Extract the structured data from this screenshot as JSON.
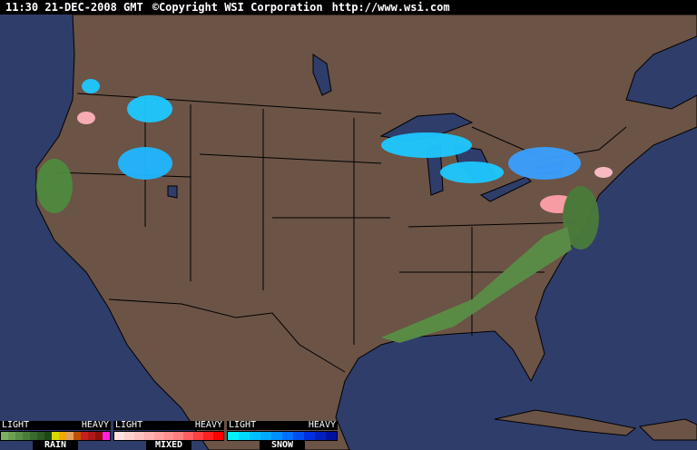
{
  "header": {
    "time": "11:30 21-DEC-2008 GMT",
    "copyright": "©Copyright WSI Corporation",
    "url": "http://www.wsi.com"
  },
  "colors": {
    "ocean": "#2f3d6a",
    "land": "#6b5346",
    "border": "#000000"
  },
  "legend": [
    {
      "name": "RAIN",
      "light": "LIGHT",
      "heavy": "HEAVY",
      "colors": [
        "#7cb060",
        "#6aa052",
        "#5a8e46",
        "#4a7c3a",
        "#3a6a2e",
        "#2e5a24",
        "#1e4818",
        "#d8d800",
        "#f0a800",
        "#e0a060",
        "#c05000",
        "#c82020",
        "#b01818",
        "#901010",
        "#ff20e0"
      ]
    },
    {
      "name": "MIXED",
      "light": "LIGHT",
      "heavy": "HEAVY",
      "colors": [
        "#ffe0e0",
        "#ffd0d0",
        "#ffc0c0",
        "#ffb0b0",
        "#ffa0a0",
        "#ff9090",
        "#ff8080",
        "#ff6060",
        "#ff4040",
        "#ff2020",
        "#ff0000"
      ]
    },
    {
      "name": "SNOW",
      "light": "LIGHT",
      "heavy": "HEAVY",
      "colors": [
        "#00f0ff",
        "#00d8ff",
        "#00c0ff",
        "#00a8ff",
        "#0090ff",
        "#0070ff",
        "#0050f0",
        "#0030e0",
        "#0020c0",
        "#0010a0"
      ]
    }
  ]
}
